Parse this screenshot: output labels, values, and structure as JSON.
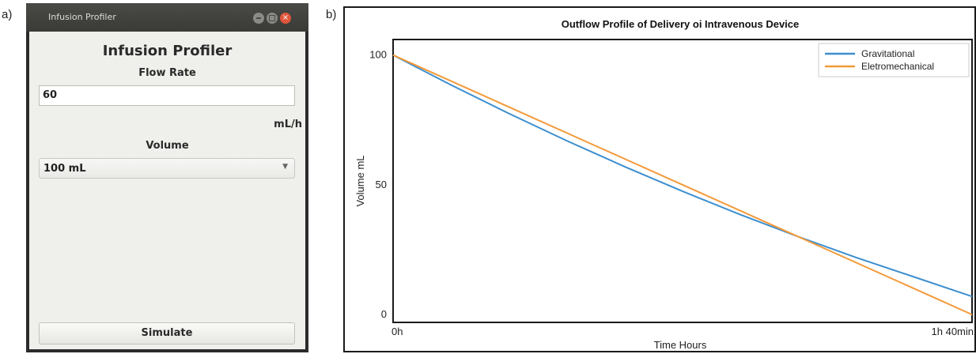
{
  "panel_a_label": "a)",
  "panel_b_label": "b)",
  "window": {
    "title": "Infusion Profiler",
    "close_glyph": "×",
    "app_title": "Infusion Profiler",
    "flow_rate_label": "Flow Rate",
    "flow_rate_value": "60",
    "flow_rate_unit": "mL/h",
    "volume_label": "Volume",
    "volume_selected": "100 mL",
    "simulate_label": "Simulate"
  },
  "colors": {
    "gravitational": "#3d8fcf",
    "eletromechanical": "#f39a3a"
  },
  "chart_data": {
    "type": "line",
    "title": "Outflow Profile of Delivery oi Intravenous Device",
    "xlabel": "Time Hours",
    "ylabel": "Volume mL",
    "x_tick_labels": [
      "0h",
      "1h 40min"
    ],
    "y_ticks": [
      0,
      50,
      100
    ],
    "x_range_minutes": [
      0,
      100
    ],
    "ylim": [
      -3,
      106
    ],
    "grid": false,
    "legend_position": "top-right",
    "series": [
      {
        "name": "Gravitational",
        "x": [
          0,
          10,
          20,
          30,
          40,
          50,
          60,
          70,
          80,
          90,
          100
        ],
        "y": [
          100,
          88.5,
          77.5,
          67,
          57,
          47.5,
          38.5,
          30,
          22,
          14.5,
          7
        ]
      },
      {
        "name": "Eletromechanical",
        "x": [
          0,
          100
        ],
        "y": [
          100,
          0
        ]
      }
    ]
  }
}
